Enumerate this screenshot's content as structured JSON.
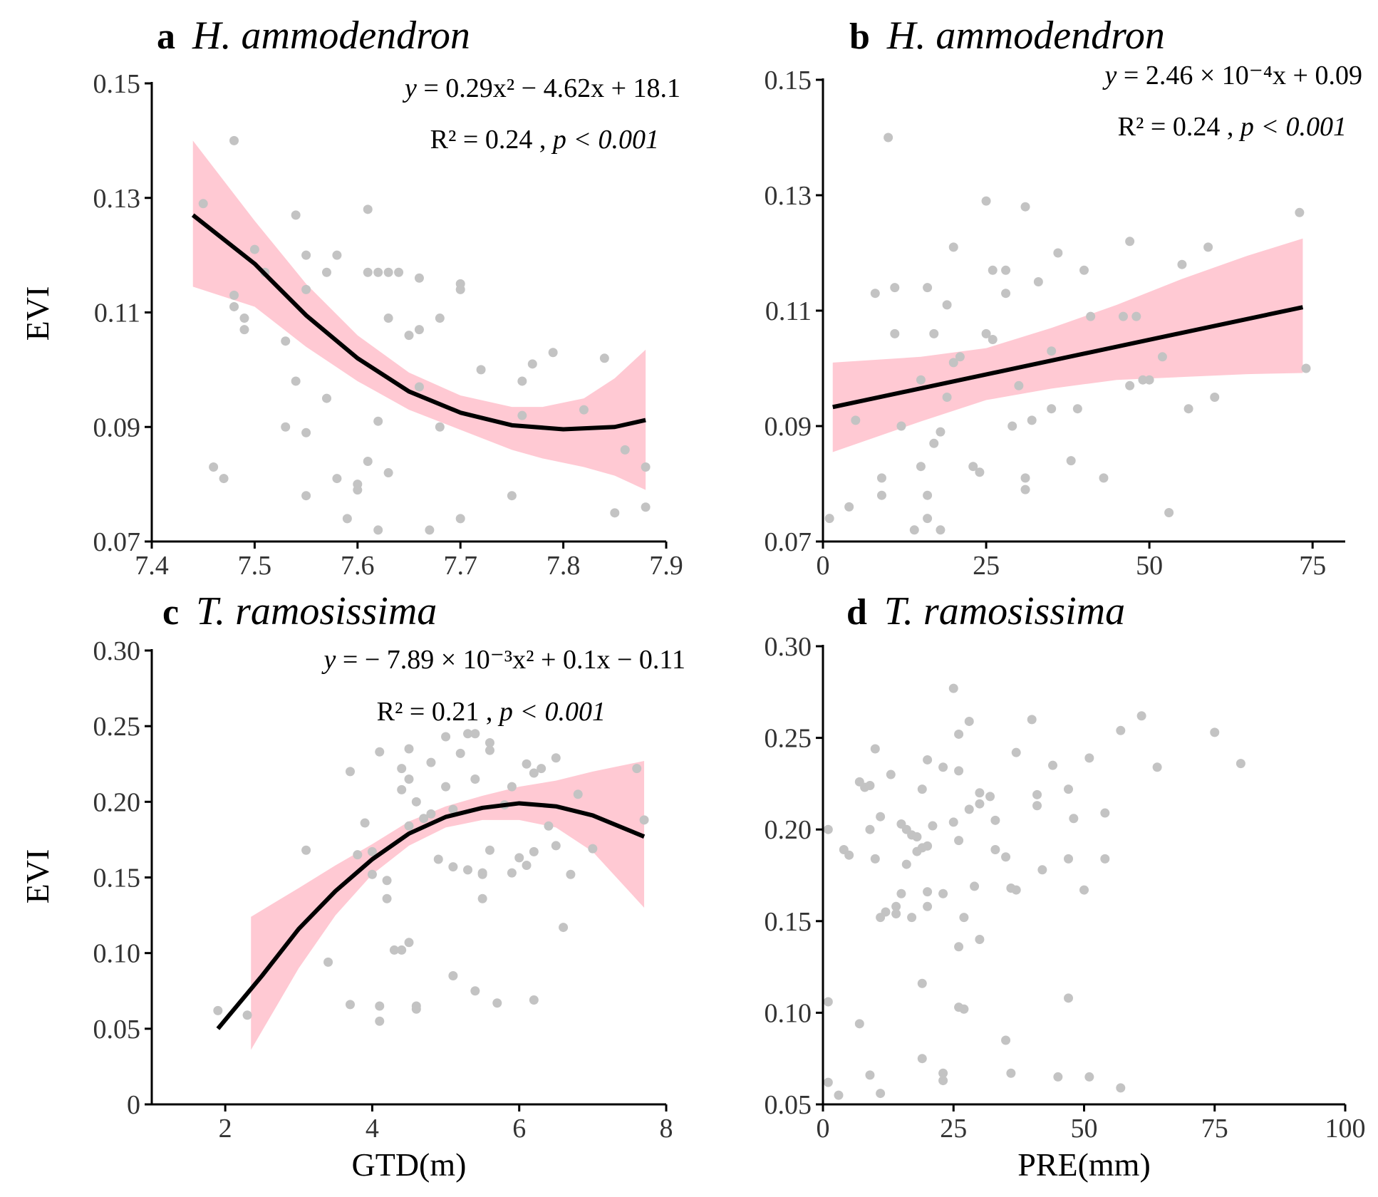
{
  "chart_data": [
    {
      "id": "a",
      "type": "scatter",
      "title_letter": "a",
      "title_species": "H. ammodendron",
      "xlabel": "",
      "ylabel": "EVI",
      "xlim": [
        7.4,
        7.9
      ],
      "ylim": [
        0.07,
        0.15
      ],
      "xticks": [
        "7.4",
        "7.5",
        "7.6",
        "7.7",
        "7.8",
        "7.9"
      ],
      "yticks": [
        "0.07",
        "0.09",
        "0.11",
        "0.13",
        "0.15"
      ],
      "equation": {
        "lhs": "y",
        "rhs": "= 0.29x² − 4.62x + 18.1"
      },
      "stats": {
        "r2": "R² = 0.24",
        "p": "p < 0.001"
      },
      "fit": {
        "type": "quadratic",
        "coef": [
          0.29,
          -4.62,
          18.1
        ],
        "x_range": [
          7.44,
          7.88
        ]
      },
      "confidence_band": [
        [
          7.44,
          0.1145,
          0.14
        ],
        [
          7.5,
          0.111,
          0.126
        ],
        [
          7.55,
          0.104,
          0.115
        ],
        [
          7.6,
          0.098,
          0.106
        ],
        [
          7.65,
          0.093,
          0.0995
        ],
        [
          7.7,
          0.0895,
          0.0955
        ],
        [
          7.75,
          0.086,
          0.0935
        ],
        [
          7.78,
          0.0845,
          0.0935
        ],
        [
          7.82,
          0.083,
          0.095
        ],
        [
          7.85,
          0.0815,
          0.0985
        ],
        [
          7.88,
          0.079,
          0.1035
        ]
      ],
      "points": [
        [
          7.45,
          0.129
        ],
        [
          7.46,
          0.083
        ],
        [
          7.47,
          0.081
        ],
        [
          7.48,
          0.14
        ],
        [
          7.48,
          0.113
        ],
        [
          7.48,
          0.111
        ],
        [
          7.49,
          0.109
        ],
        [
          7.49,
          0.107
        ],
        [
          7.5,
          0.121
        ],
        [
          7.51,
          0.117
        ],
        [
          7.53,
          0.09
        ],
        [
          7.53,
          0.105
        ],
        [
          7.54,
          0.098
        ],
        [
          7.54,
          0.127
        ],
        [
          7.55,
          0.12
        ],
        [
          7.55,
          0.089
        ],
        [
          7.55,
          0.078
        ],
        [
          7.55,
          0.114
        ],
        [
          7.57,
          0.117
        ],
        [
          7.57,
          0.095
        ],
        [
          7.58,
          0.12
        ],
        [
          7.58,
          0.081
        ],
        [
          7.59,
          0.074
        ],
        [
          7.6,
          0.079
        ],
        [
          7.6,
          0.08
        ],
        [
          7.61,
          0.084
        ],
        [
          7.61,
          0.117
        ],
        [
          7.61,
          0.128
        ],
        [
          7.62,
          0.117
        ],
        [
          7.62,
          0.091
        ],
        [
          7.62,
          0.072
        ],
        [
          7.63,
          0.082
        ],
        [
          7.63,
          0.109
        ],
        [
          7.63,
          0.117
        ],
        [
          7.64,
          0.117
        ],
        [
          7.65,
          0.106
        ],
        [
          7.66,
          0.116
        ],
        [
          7.66,
          0.107
        ],
        [
          7.66,
          0.097
        ],
        [
          7.67,
          0.072
        ],
        [
          7.68,
          0.109
        ],
        [
          7.68,
          0.09
        ],
        [
          7.7,
          0.115
        ],
        [
          7.7,
          0.114
        ],
        [
          7.7,
          0.074
        ],
        [
          7.72,
          0.1
        ],
        [
          7.75,
          0.078
        ],
        [
          7.76,
          0.098
        ],
        [
          7.76,
          0.092
        ],
        [
          7.77,
          0.101
        ],
        [
          7.79,
          0.103
        ],
        [
          7.82,
          0.093
        ],
        [
          7.84,
          0.102
        ],
        [
          7.85,
          0.075
        ],
        [
          7.86,
          0.086
        ],
        [
          7.88,
          0.083
        ],
        [
          7.88,
          0.076
        ]
      ]
    },
    {
      "id": "b",
      "type": "scatter",
      "title_letter": "b",
      "title_species": "H. ammodendron",
      "xlabel": "",
      "ylabel": "",
      "xlim": [
        0,
        80
      ],
      "ylim": [
        0.07,
        0.15
      ],
      "xticks": [
        "0",
        "25",
        "50",
        "75"
      ],
      "yticks": [
        "0.07",
        "0.09",
        "0.11",
        "0.13",
        "0.15"
      ],
      "equation": {
        "lhs": "y",
        "rhs": "= 2.46 × 10⁻⁴x + 0.09"
      },
      "stats": {
        "r2": "R² = 0.24",
        "p": "p < 0.001"
      },
      "fit": {
        "type": "linear",
        "y_at_start": 0.0933,
        "y_at_end": 0.1106,
        "x_range": [
          1.5,
          73.5
        ]
      },
      "confidence_band": [
        [
          1.5,
          0.0855,
          0.101
        ],
        [
          15,
          0.0908,
          0.102
        ],
        [
          25,
          0.0945,
          0.1035
        ],
        [
          35,
          0.0965,
          0.107
        ],
        [
          45,
          0.098,
          0.111
        ],
        [
          55,
          0.0985,
          0.1155
        ],
        [
          65,
          0.099,
          0.1195
        ],
        [
          73.5,
          0.0992,
          0.1225
        ]
      ],
      "points": [
        [
          1,
          0.074
        ],
        [
          4,
          0.076
        ],
        [
          5,
          0.091
        ],
        [
          8,
          0.113
        ],
        [
          9,
          0.081
        ],
        [
          9,
          0.078
        ],
        [
          10,
          0.14
        ],
        [
          11,
          0.114
        ],
        [
          11,
          0.106
        ],
        [
          12,
          0.09
        ],
        [
          14,
          0.072
        ],
        [
          15,
          0.098
        ],
        [
          15,
          0.083
        ],
        [
          16,
          0.114
        ],
        [
          16,
          0.074
        ],
        [
          16,
          0.078
        ],
        [
          17,
          0.087
        ],
        [
          17,
          0.106
        ],
        [
          18,
          0.072
        ],
        [
          18,
          0.089
        ],
        [
          19,
          0.111
        ],
        [
          19,
          0.095
        ],
        [
          20,
          0.101
        ],
        [
          20,
          0.121
        ],
        [
          21,
          0.102
        ],
        [
          23,
          0.083
        ],
        [
          24,
          0.082
        ],
        [
          25,
          0.129
        ],
        [
          25,
          0.106
        ],
        [
          26,
          0.105
        ],
        [
          26,
          0.117
        ],
        [
          28,
          0.117
        ],
        [
          28,
          0.113
        ],
        [
          29,
          0.09
        ],
        [
          30,
          0.097
        ],
        [
          31,
          0.128
        ],
        [
          31,
          0.081
        ],
        [
          31,
          0.079
        ],
        [
          32,
          0.091
        ],
        [
          33,
          0.115
        ],
        [
          35,
          0.093
        ],
        [
          35,
          0.103
        ],
        [
          36,
          0.12
        ],
        [
          38,
          0.084
        ],
        [
          39,
          0.093
        ],
        [
          40,
          0.117
        ],
        [
          41,
          0.109
        ],
        [
          43,
          0.081
        ],
        [
          46,
          0.109
        ],
        [
          47,
          0.097
        ],
        [
          47,
          0.122
        ],
        [
          48,
          0.109
        ],
        [
          49,
          0.098
        ],
        [
          50,
          0.098
        ],
        [
          52,
          0.102
        ],
        [
          53,
          0.075
        ],
        [
          55,
          0.118
        ],
        [
          56,
          0.093
        ],
        [
          59,
          0.121
        ],
        [
          60,
          0.095
        ],
        [
          73,
          0.127
        ],
        [
          74,
          0.1
        ]
      ]
    },
    {
      "id": "c",
      "type": "scatter",
      "title_letter": "c",
      "title_species": "T. ramosissima",
      "xlabel": "GTD(m)",
      "ylabel": "EVI",
      "xlim": [
        1,
        8
      ],
      "ylim": [
        0,
        0.3
      ],
      "xticks": [
        "2",
        "4",
        "6",
        "8"
      ],
      "yticks": [
        "0",
        "0.05",
        "0.10",
        "0.15",
        "0.20",
        "0.25",
        "0.30"
      ],
      "equation": {
        "lhs": "y",
        "rhs": "= − 7.89 × 10⁻³x² + 0.1x − 0.11"
      },
      "stats": {
        "r2": "R² = 0.21",
        "p": "p < 0.001"
      },
      "fit": {
        "type": "quadratic",
        "coef": [
          -0.00789,
          0.1,
          -0.11
        ],
        "x_range": [
          1.9,
          7.7
        ]
      },
      "confidence_band": [
        [
          2.35,
          0.036,
          0.124
        ],
        [
          3.0,
          0.09,
          0.143
        ],
        [
          3.5,
          0.125,
          0.158
        ],
        [
          4.0,
          0.152,
          0.172
        ],
        [
          4.5,
          0.171,
          0.187
        ],
        [
          5.0,
          0.183,
          0.197
        ],
        [
          5.5,
          0.188,
          0.204
        ],
        [
          6.0,
          0.188,
          0.21
        ],
        [
          6.5,
          0.183,
          0.214
        ],
        [
          7.0,
          0.167,
          0.22
        ],
        [
          7.7,
          0.13,
          0.227
        ]
      ],
      "points": [
        [
          1.9,
          0.062
        ],
        [
          2.3,
          0.059
        ],
        [
          3.1,
          0.168
        ],
        [
          3.4,
          0.094
        ],
        [
          3.7,
          0.066
        ],
        [
          3.7,
          0.22
        ],
        [
          3.8,
          0.165
        ],
        [
          3.9,
          0.186
        ],
        [
          4.0,
          0.167
        ],
        [
          4.0,
          0.152
        ],
        [
          4.1,
          0.055
        ],
        [
          4.1,
          0.065
        ],
        [
          4.1,
          0.233
        ],
        [
          4.2,
          0.148
        ],
        [
          4.2,
          0.136
        ],
        [
          4.3,
          0.102
        ],
        [
          4.4,
          0.102
        ],
        [
          4.4,
          0.208
        ],
        [
          4.4,
          0.222
        ],
        [
          4.5,
          0.215
        ],
        [
          4.5,
          0.107
        ],
        [
          4.5,
          0.184
        ],
        [
          4.5,
          0.235
        ],
        [
          4.6,
          0.065
        ],
        [
          4.6,
          0.063
        ],
        [
          4.6,
          0.2
        ],
        [
          4.7,
          0.189
        ],
        [
          4.8,
          0.226
        ],
        [
          4.8,
          0.192
        ],
        [
          4.9,
          0.162
        ],
        [
          5.0,
          0.243
        ],
        [
          5.0,
          0.21
        ],
        [
          5.1,
          0.195
        ],
        [
          5.1,
          0.157
        ],
        [
          5.1,
          0.085
        ],
        [
          5.2,
          0.232
        ],
        [
          5.3,
          0.155
        ],
        [
          5.3,
          0.245
        ],
        [
          5.4,
          0.245
        ],
        [
          5.4,
          0.075
        ],
        [
          5.4,
          0.215
        ],
        [
          5.5,
          0.136
        ],
        [
          5.5,
          0.153
        ],
        [
          5.5,
          0.152
        ],
        [
          5.6,
          0.239
        ],
        [
          5.6,
          0.234
        ],
        [
          5.6,
          0.168
        ],
        [
          5.7,
          0.067
        ],
        [
          5.8,
          0.198
        ],
        [
          5.9,
          0.153
        ],
        [
          5.9,
          0.21
        ],
        [
          6.0,
          0.163
        ],
        [
          6.1,
          0.158
        ],
        [
          6.1,
          0.225
        ],
        [
          6.2,
          0.069
        ],
        [
          6.2,
          0.167
        ],
        [
          6.2,
          0.219
        ],
        [
          6.3,
          0.222
        ],
        [
          6.4,
          0.184
        ],
        [
          6.5,
          0.229
        ],
        [
          6.5,
          0.171
        ],
        [
          6.6,
          0.117
        ],
        [
          6.7,
          0.152
        ],
        [
          6.8,
          0.205
        ],
        [
          7.0,
          0.169
        ],
        [
          7.6,
          0.222
        ],
        [
          7.7,
          0.188
        ]
      ]
    },
    {
      "id": "d",
      "type": "scatter",
      "title_letter": "d",
      "title_species": "T. ramosissima",
      "xlabel": "PRE(mm)",
      "ylabel": "",
      "xlim": [
        0,
        100
      ],
      "ylim": [
        0.05,
        0.3
      ],
      "xticks": [
        "0",
        "25",
        "50",
        "75",
        "100"
      ],
      "yticks": [
        "0.05",
        "0.10",
        "0.15",
        "0.20",
        "0.25",
        "0.30"
      ],
      "equation": null,
      "stats": null,
      "fit": null,
      "confidence_band": null,
      "points": [
        [
          1,
          0.2
        ],
        [
          1,
          0.106
        ],
        [
          1,
          0.062
        ],
        [
          3,
          0.055
        ],
        [
          4,
          0.189
        ],
        [
          5,
          0.186
        ],
        [
          7,
          0.226
        ],
        [
          7,
          0.094
        ],
        [
          8,
          0.223
        ],
        [
          9,
          0.224
        ],
        [
          9,
          0.066
        ],
        [
          9,
          0.2
        ],
        [
          10,
          0.184
        ],
        [
          10,
          0.244
        ],
        [
          11,
          0.207
        ],
        [
          11,
          0.152
        ],
        [
          11,
          0.056
        ],
        [
          12,
          0.155
        ],
        [
          13,
          0.23
        ],
        [
          14,
          0.154
        ],
        [
          14,
          0.158
        ],
        [
          15,
          0.165
        ],
        [
          15,
          0.203
        ],
        [
          16,
          0.181
        ],
        [
          16,
          0.2
        ],
        [
          17,
          0.197
        ],
        [
          17,
          0.152
        ],
        [
          18,
          0.196
        ],
        [
          18,
          0.188
        ],
        [
          19,
          0.19
        ],
        [
          19,
          0.222
        ],
        [
          19,
          0.116
        ],
        [
          19,
          0.075
        ],
        [
          20,
          0.238
        ],
        [
          20,
          0.158
        ],
        [
          20,
          0.191
        ],
        [
          20,
          0.166
        ],
        [
          21,
          0.202
        ],
        [
          23,
          0.067
        ],
        [
          23,
          0.063
        ],
        [
          23,
          0.165
        ],
        [
          23,
          0.234
        ],
        [
          25,
          0.277
        ],
        [
          25,
          0.204
        ],
        [
          26,
          0.136
        ],
        [
          26,
          0.103
        ],
        [
          26,
          0.252
        ],
        [
          26,
          0.194
        ],
        [
          26,
          0.232
        ],
        [
          27,
          0.102
        ],
        [
          27,
          0.152
        ],
        [
          28,
          0.259
        ],
        [
          28,
          0.211
        ],
        [
          29,
          0.169
        ],
        [
          30,
          0.214
        ],
        [
          30,
          0.14
        ],
        [
          30,
          0.22
        ],
        [
          32,
          0.218
        ],
        [
          33,
          0.205
        ],
        [
          33,
          0.189
        ],
        [
          35,
          0.185
        ],
        [
          35,
          0.085
        ],
        [
          36,
          0.168
        ],
        [
          36,
          0.067
        ],
        [
          37,
          0.242
        ],
        [
          37,
          0.167
        ],
        [
          40,
          0.26
        ],
        [
          41,
          0.213
        ],
        [
          41,
          0.219
        ],
        [
          42,
          0.178
        ],
        [
          44,
          0.235
        ],
        [
          45,
          0.065
        ],
        [
          47,
          0.108
        ],
        [
          47,
          0.184
        ],
        [
          47,
          0.222
        ],
        [
          48,
          0.206
        ],
        [
          50,
          0.167
        ],
        [
          51,
          0.065
        ],
        [
          51,
          0.239
        ],
        [
          54,
          0.209
        ],
        [
          54,
          0.184
        ],
        [
          57,
          0.254
        ],
        [
          57,
          0.059
        ],
        [
          61,
          0.262
        ],
        [
          64,
          0.234
        ],
        [
          75,
          0.253
        ],
        [
          80,
          0.236
        ]
      ]
    }
  ]
}
